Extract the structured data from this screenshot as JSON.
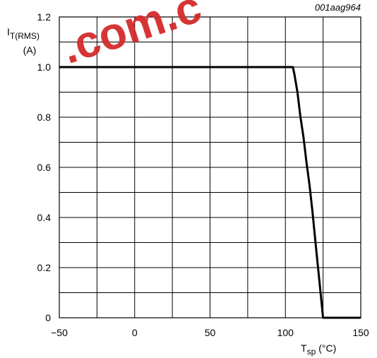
{
  "figure_id": "001aag964",
  "watermark": {
    "text": ".com.c",
    "color": "#d42a2a"
  },
  "chart_data": {
    "type": "line",
    "ylabel_main": "I",
    "ylabel_sub": "T(RMS)",
    "ylabel_unit": "(A)",
    "xlabel_main": "T",
    "xlabel_sub": "sp",
    "xlabel_unit": "(°C)",
    "xlim": [
      -50,
      150
    ],
    "ylim": [
      0,
      1.2
    ],
    "x_ticks": [
      -50,
      0,
      50,
      100,
      150
    ],
    "x_tick_labels": [
      "−50",
      "0",
      "50",
      "100",
      "150"
    ],
    "y_ticks": [
      0,
      0.2,
      0.4,
      0.6,
      0.8,
      1.0,
      1.2
    ],
    "y_tick_labels": [
      "0",
      "0.2",
      "0.4",
      "0.6",
      "0.8",
      "1.0",
      "1.2"
    ],
    "x_grid_step": 25,
    "y_grid_step": 0.1,
    "grid": true,
    "series": [
      {
        "color": "#000000",
        "x": [
          -50,
          104,
          105,
          106,
          108,
          110,
          112,
          114,
          116,
          118,
          120,
          122,
          124,
          125,
          150
        ],
        "y": [
          1.0,
          1.0,
          1.0,
          0.97,
          0.9,
          0.8,
          0.72,
          0.62,
          0.53,
          0.42,
          0.3,
          0.18,
          0.06,
          0.0,
          0.0
        ]
      }
    ]
  }
}
